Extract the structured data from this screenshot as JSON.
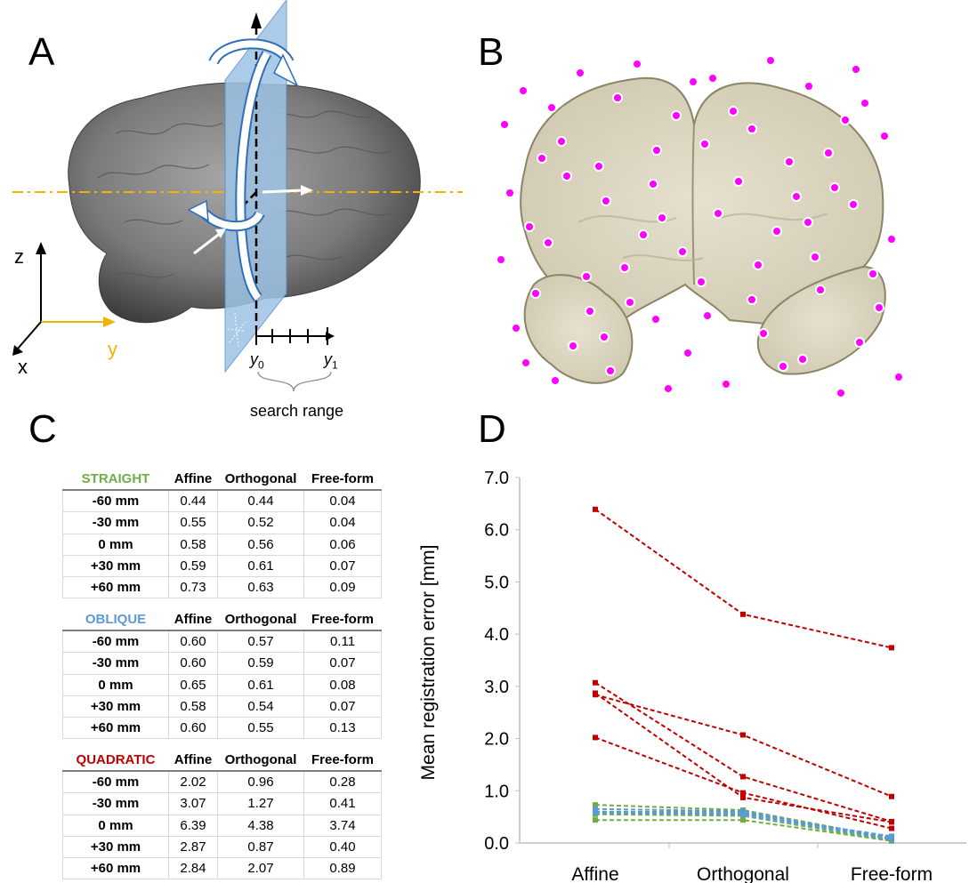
{
  "panels": {
    "a": "A",
    "b": "B",
    "c": "C",
    "d": "D"
  },
  "panel_a": {
    "axis_z": "z",
    "axis_y": "y",
    "axis_x": "x",
    "y0_label": "y",
    "y0_sub": "0",
    "y1_label": "y",
    "y1_sub": "1",
    "search_range": "search range",
    "colors": {
      "plane": "#9dc3e6",
      "axis_y": "#f0b400",
      "brain": "#808080"
    }
  },
  "panel_b": {
    "colors": {
      "tissue": "#ddd9c4",
      "marker": "#ff00ff"
    }
  },
  "tables": [
    {
      "title": "STRAIGHT",
      "title_color": "#70ad47",
      "columns": [
        "Affine",
        "Orthogonal",
        "Free-form"
      ],
      "rows": [
        {
          "label": "-60 mm",
          "values": [
            "0.44",
            "0.44",
            "0.04"
          ]
        },
        {
          "label": "-30 mm",
          "values": [
            "0.55",
            "0.52",
            "0.04"
          ]
        },
        {
          "label": "0 mm",
          "values": [
            "0.58",
            "0.56",
            "0.06"
          ]
        },
        {
          "label": "+30 mm",
          "values": [
            "0.59",
            "0.61",
            "0.07"
          ]
        },
        {
          "label": "+60 mm",
          "values": [
            "0.73",
            "0.63",
            "0.09"
          ]
        }
      ]
    },
    {
      "title": "OBLIQUE",
      "title_color": "#5b9bd5",
      "columns": [
        "Affine",
        "Orthogonal",
        "Free-form"
      ],
      "rows": [
        {
          "label": "-60 mm",
          "values": [
            "0.60",
            "0.57",
            "0.11"
          ]
        },
        {
          "label": "-30 mm",
          "values": [
            "0.60",
            "0.59",
            "0.07"
          ]
        },
        {
          "label": "0 mm",
          "values": [
            "0.65",
            "0.61",
            "0.08"
          ]
        },
        {
          "label": "+30 mm",
          "values": [
            "0.58",
            "0.54",
            "0.07"
          ]
        },
        {
          "label": "+60 mm",
          "values": [
            "0.60",
            "0.55",
            "0.13"
          ]
        }
      ]
    },
    {
      "title": "QUADRATIC",
      "title_color": "#c00000",
      "columns": [
        "Affine",
        "Orthogonal",
        "Free-form"
      ],
      "rows": [
        {
          "label": "-60 mm",
          "values": [
            "2.02",
            "0.96",
            "0.28"
          ]
        },
        {
          "label": "-30 mm",
          "values": [
            "3.07",
            "1.27",
            "0.41"
          ]
        },
        {
          "label": "0 mm",
          "values": [
            "6.39",
            "4.38",
            "3.74"
          ]
        },
        {
          "label": "+30 mm",
          "values": [
            "2.87",
            "0.87",
            "0.40"
          ]
        },
        {
          "label": "+60 mm",
          "values": [
            "2.84",
            "2.07",
            "0.89"
          ]
        }
      ]
    }
  ],
  "chart_data": {
    "type": "line",
    "ylabel": "Mean registration error [mm]",
    "xlabel": "",
    "categories": [
      "Affine",
      "Orthogonal",
      "Free-form"
    ],
    "ylim": [
      0,
      7
    ],
    "yticks": [
      "0.0",
      "1.0",
      "2.0",
      "3.0",
      "4.0",
      "5.0",
      "6.0",
      "7.0"
    ],
    "grid": false,
    "series": [
      {
        "group": "STRAIGHT",
        "color": "#70ad47",
        "values": [
          0.44,
          0.44,
          0.04
        ]
      },
      {
        "group": "STRAIGHT",
        "color": "#70ad47",
        "values": [
          0.55,
          0.52,
          0.04
        ]
      },
      {
        "group": "STRAIGHT",
        "color": "#70ad47",
        "values": [
          0.58,
          0.56,
          0.06
        ]
      },
      {
        "group": "STRAIGHT",
        "color": "#70ad47",
        "values": [
          0.59,
          0.61,
          0.07
        ]
      },
      {
        "group": "STRAIGHT",
        "color": "#70ad47",
        "values": [
          0.73,
          0.63,
          0.09
        ]
      },
      {
        "group": "OBLIQUE",
        "color": "#5b9bd5",
        "values": [
          0.6,
          0.57,
          0.11
        ]
      },
      {
        "group": "OBLIQUE",
        "color": "#5b9bd5",
        "values": [
          0.6,
          0.59,
          0.07
        ]
      },
      {
        "group": "OBLIQUE",
        "color": "#5b9bd5",
        "values": [
          0.65,
          0.61,
          0.08
        ]
      },
      {
        "group": "OBLIQUE",
        "color": "#5b9bd5",
        "values": [
          0.58,
          0.54,
          0.07
        ]
      },
      {
        "group": "OBLIQUE",
        "color": "#5b9bd5",
        "values": [
          0.6,
          0.55,
          0.13
        ]
      },
      {
        "group": "QUADRATIC",
        "color": "#c00000",
        "values": [
          2.02,
          0.96,
          0.28
        ]
      },
      {
        "group": "QUADRATIC",
        "color": "#c00000",
        "values": [
          3.07,
          1.27,
          0.41
        ]
      },
      {
        "group": "QUADRATIC",
        "color": "#c00000",
        "values": [
          6.39,
          4.38,
          3.74
        ]
      },
      {
        "group": "QUADRATIC",
        "color": "#c00000",
        "values": [
          2.87,
          0.87,
          0.4
        ]
      },
      {
        "group": "QUADRATIC",
        "color": "#c00000",
        "values": [
          2.84,
          2.07,
          0.89
        ]
      }
    ]
  }
}
